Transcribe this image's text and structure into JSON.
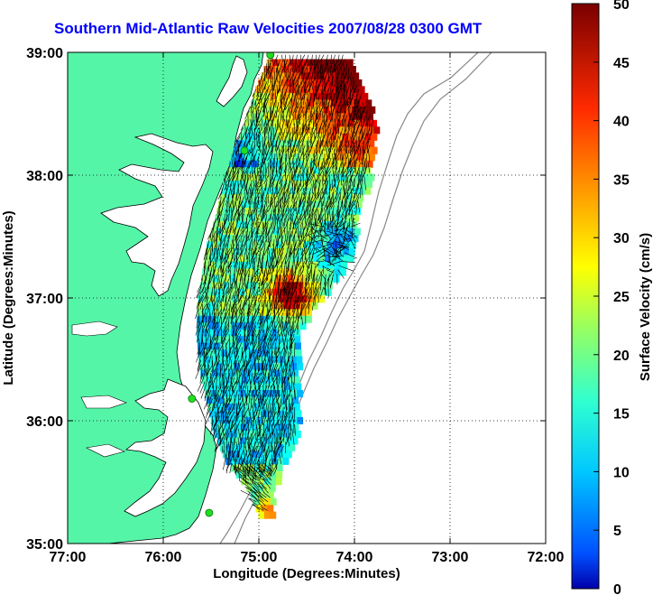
{
  "title": "Southern Mid-Atlantic Raw Velocities 2007/08/28 0300 GMT",
  "x_axis": {
    "label": "Longitude (Degrees:Minutes)",
    "ticks": [
      "77:00",
      "76:00",
      "75:00",
      "74:00",
      "73:00",
      "72:00"
    ]
  },
  "y_axis": {
    "label": "Latitude (Degrees:Minutes)",
    "ticks": [
      "39:00",
      "38:00",
      "37:00",
      "36:00",
      "35:00"
    ]
  },
  "colorbar": {
    "label": "Surface Velocity (cm/s)",
    "ticks": [
      "50",
      "45",
      "40",
      "35",
      "30",
      "25",
      "20",
      "15",
      "10",
      "5",
      "0"
    ],
    "min": 0,
    "max": 50,
    "colormap": "jet"
  },
  "colors": {
    "land": "#55f5a8",
    "water": "#ffffff",
    "title": "#0000ff",
    "station_marker": "#22dd22"
  },
  "map_extent": {
    "lon": [
      -77,
      -72
    ],
    "lat": [
      35,
      39
    ]
  },
  "grid": true,
  "stations": [
    {
      "lon": -74.88,
      "lat": 38.98
    },
    {
      "lon": -75.15,
      "lat": 38.2
    },
    {
      "lon": -75.7,
      "lat": 36.18
    },
    {
      "lon": -75.52,
      "lat": 35.25
    }
  ]
}
